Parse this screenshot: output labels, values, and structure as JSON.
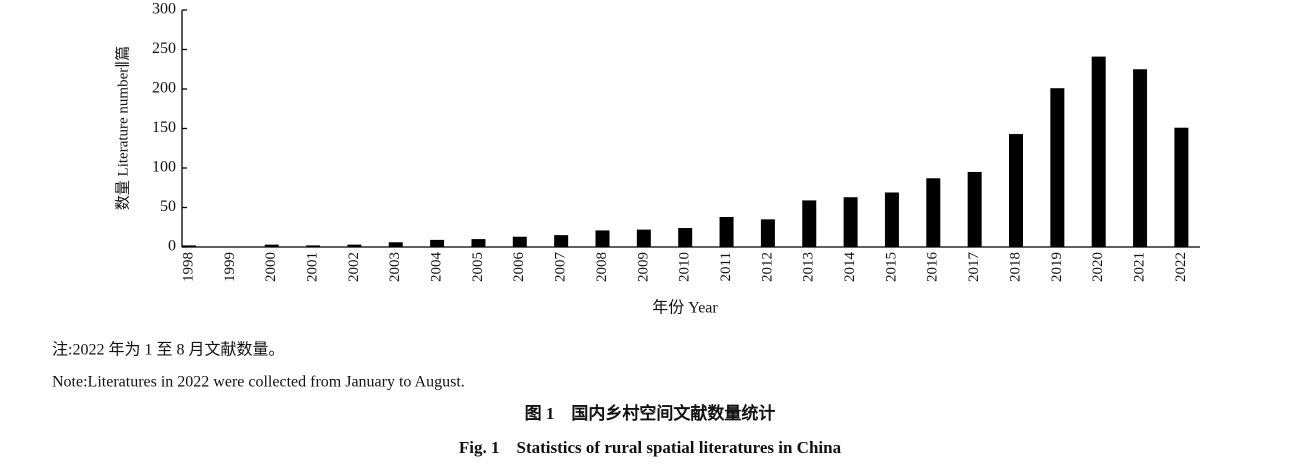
{
  "chart_data": {
    "type": "bar",
    "y_label": "数量 Literature number∥篇",
    "x_label": "年份 Year",
    "categories": [
      "1998",
      "1999",
      "2000",
      "2001",
      "2002",
      "2003",
      "2004",
      "2005",
      "2006",
      "2007",
      "2008",
      "2009",
      "2010",
      "2011",
      "2012",
      "2013",
      "2014",
      "2015",
      "2016",
      "2017",
      "2018",
      "2019",
      "2020",
      "2021",
      "2022"
    ],
    "values": [
      2,
      0,
      3,
      2,
      3,
      6,
      9,
      10,
      13,
      15,
      21,
      22,
      24,
      38,
      35,
      59,
      63,
      69,
      87,
      95,
      143,
      201,
      241,
      225,
      151
    ],
    "color": "#000000",
    "ylim": [
      0,
      300
    ],
    "yticks": [
      0,
      50,
      100,
      150,
      200,
      250,
      300
    ],
    "notes": [
      "注:2022 年为 1 至 8 月文献数量。",
      "Note:Literatures in 2022 were collected from January to August."
    ],
    "captions": [
      "图 1　国内乡村空间文献数量统计",
      "Fig. 1　Statistics of rural spatial literatures in China"
    ]
  }
}
